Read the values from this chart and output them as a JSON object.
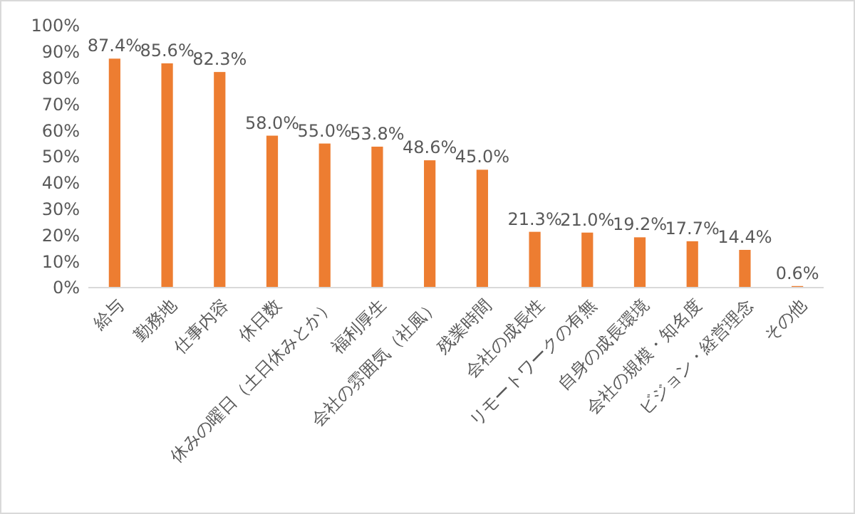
{
  "chart_data": {
    "type": "bar",
    "categories": [
      "給与",
      "勤務地",
      "仕事内容",
      "休日数",
      "休みの曜日（土日休みとか）",
      "福利厚生",
      "会社の雰囲気（社風）",
      "残業時間",
      "会社の成長性",
      "リモートワークの有無",
      "自身の成長環境",
      "会社の規模・知名度",
      "ビジョン・経営理念",
      "その他"
    ],
    "values": [
      87.4,
      85.6,
      82.3,
      58.0,
      55.0,
      53.8,
      48.6,
      45.0,
      21.3,
      21.0,
      19.2,
      17.7,
      14.4,
      0.6
    ],
    "value_labels": [
      "87.4%",
      "85.6%",
      "82.3%",
      "58.0%",
      "55.0%",
      "53.8%",
      "48.6%",
      "45.0%",
      "21.3%",
      "21.0%",
      "19.2%",
      "17.7%",
      "14.4%",
      "0.6%"
    ],
    "color": "#ed7d31",
    "ylim": [
      0,
      100
    ],
    "yticks": [
      {
        "value": 0,
        "label": "0%"
      },
      {
        "value": 10,
        "label": "10%"
      },
      {
        "value": 20,
        "label": "20%"
      },
      {
        "value": 30,
        "label": "30%"
      },
      {
        "value": 40,
        "label": "40%"
      },
      {
        "value": 50,
        "label": "50%"
      },
      {
        "value": 60,
        "label": "60%"
      },
      {
        "value": 70,
        "label": "70%"
      },
      {
        "value": 80,
        "label": "80%"
      },
      {
        "value": 90,
        "label": "90%"
      },
      {
        "value": 100,
        "label": "100%"
      }
    ],
    "grid": false
  }
}
